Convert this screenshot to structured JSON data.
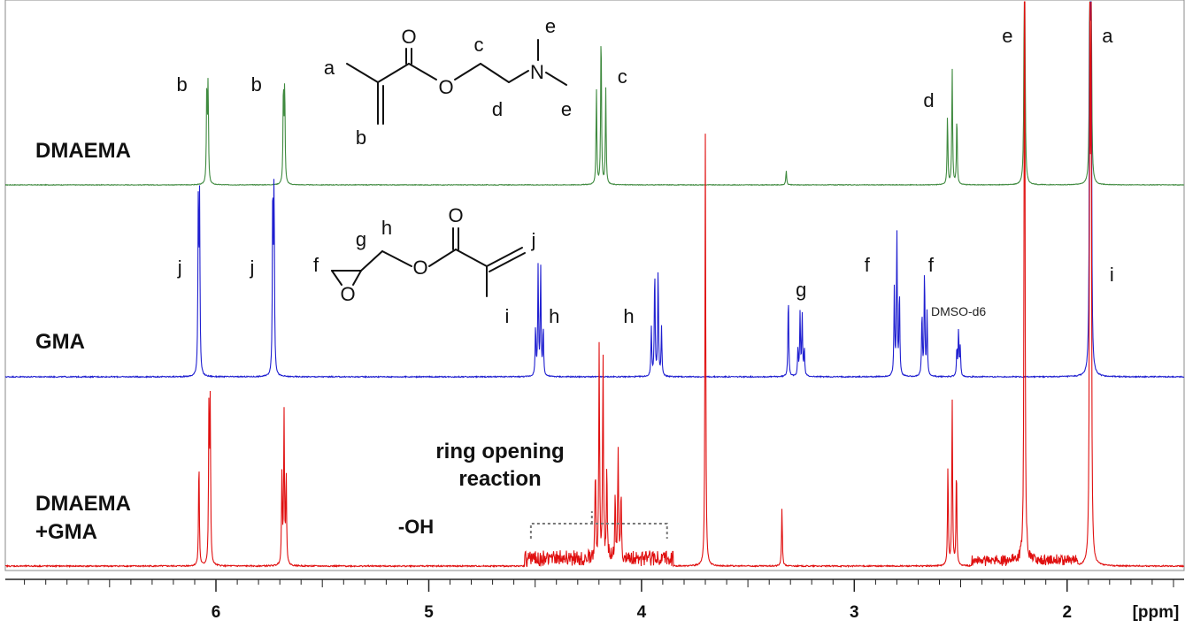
{
  "chart_data": {
    "type": "line",
    "title": "",
    "xlabel": "[ppm]",
    "ylabel": "",
    "x_reversed": true,
    "xlim": [
      6.99,
      1.45
    ],
    "major_ticks": [
      6,
      5,
      4,
      3,
      2
    ],
    "minor_tick_step": 0.1,
    "grid": false,
    "series": [
      {
        "name": "DMAEMA",
        "color": "#3f8a3f",
        "peaks": [
          {
            "ppm": 6.04,
            "height": 0.93,
            "mult": 2,
            "sep": 0.006
          },
          {
            "ppm": 5.68,
            "height": 0.92,
            "mult": 2,
            "sep": 0.006
          },
          {
            "ppm": 4.19,
            "height": 1.5,
            "mult": 3,
            "sep": 0.022
          },
          {
            "ppm": 3.32,
            "height": 0.14,
            "mult": 1,
            "sep": 0
          },
          {
            "ppm": 2.54,
            "height": 1.1,
            "mult": 3,
            "sep": 0.022
          },
          {
            "ppm": 2.2,
            "height": 3.6,
            "mult": 1,
            "sep": 0
          },
          {
            "ppm": 1.89,
            "height": 2.5,
            "mult": 2,
            "sep": 0.006
          }
        ],
        "labels": [
          {
            "text": "b",
            "ppm": 6.16
          },
          {
            "text": "b",
            "ppm": 5.81
          },
          {
            "text": "c",
            "ppm": 4.09
          },
          {
            "text": "d",
            "ppm": 2.65
          },
          {
            "text": "e",
            "ppm": 2.28
          },
          {
            "text": "a",
            "ppm": 1.81
          }
        ]
      },
      {
        "name": "GMA",
        "color": "#1f1fd0",
        "peaks": [
          {
            "ppm": 6.08,
            "height": 0.91,
            "mult": 2,
            "sep": 0.006
          },
          {
            "ppm": 5.73,
            "height": 1.0,
            "mult": 2,
            "sep": 0.006
          },
          {
            "ppm": 4.48,
            "height": 0.58,
            "mult": 4,
            "sep": 0.012
          },
          {
            "ppm": 3.93,
            "height": 0.58,
            "mult": 4,
            "sep": 0.016
          },
          {
            "ppm": 3.31,
            "height": 0.44,
            "mult": 1,
            "sep": 0
          },
          {
            "ppm": 3.25,
            "height": 0.33,
            "mult": 4,
            "sep": 0.01
          },
          {
            "ppm": 2.8,
            "height": 0.77,
            "mult": 3,
            "sep": 0.012
          },
          {
            "ppm": 2.67,
            "height": 0.57,
            "mult": 3,
            "sep": 0.012
          },
          {
            "ppm": 2.51,
            "height": 0.25,
            "mult": 3,
            "sep": 0.008
          },
          {
            "ppm": 1.89,
            "height": 2.5,
            "mult": 2,
            "sep": 0.006
          }
        ],
        "labels": [
          {
            "text": "j",
            "ppm": 6.17
          },
          {
            "text": "j",
            "ppm": 5.83
          },
          {
            "text": "h",
            "ppm": 4.41
          },
          {
            "text": "h",
            "ppm": 4.06
          },
          {
            "text": "g",
            "ppm": 3.25
          },
          {
            "text": "f",
            "ppm": 2.94
          },
          {
            "text": "f",
            "ppm": 2.64
          },
          {
            "text": "i",
            "ppm": 1.79
          }
        ]
      },
      {
        "name": "DMAEMA\n+GMA",
        "color": "#e01010",
        "peaks": [
          {
            "ppm": 6.08,
            "height": 0.5,
            "mult": 1,
            "sep": 0
          },
          {
            "ppm": 6.03,
            "height": 0.72,
            "mult": 2,
            "sep": 0.006
          },
          {
            "ppm": 5.68,
            "height": 0.7,
            "mult": 3,
            "sep": 0.01
          },
          {
            "ppm": 4.19,
            "height": 0.95,
            "mult": 4,
            "sep": 0.018
          },
          {
            "ppm": 4.11,
            "height": 0.48,
            "mult": 3,
            "sep": 0.014
          },
          {
            "ppm": 3.7,
            "height": 2.0,
            "mult": 1,
            "sep": 0
          },
          {
            "ppm": 3.34,
            "height": 0.27,
            "mult": 1,
            "sep": 0
          },
          {
            "ppm": 2.54,
            "height": 0.77,
            "mult": 3,
            "sep": 0.02
          },
          {
            "ppm": 2.2,
            "height": 3.6,
            "mult": 1,
            "sep": 0
          },
          {
            "ppm": 1.89,
            "height": 2.5,
            "mult": 2,
            "sep": 0.006
          }
        ],
        "labels": []
      }
    ],
    "annotations": {
      "solvent_label": "DMSO-d6",
      "solvent_ppm": 2.51,
      "ring_opening_line1": "ring opening",
      "ring_opening_line2": "reaction",
      "ring_opening_range": [
        4.52,
        3.88
      ],
      "oh_label": "-OH"
    }
  },
  "structures": {
    "dmaema": {
      "a": "a",
      "b": "b",
      "c": "c",
      "d": "d",
      "e1": "e",
      "e2": "e",
      "o1": "O",
      "o2": "O",
      "n": "N"
    },
    "gma": {
      "f": "f",
      "g": "g",
      "h": "h",
      "i": "i",
      "j": "j",
      "o1": "O",
      "o2": "O",
      "o3": "O"
    }
  },
  "panel_labels": {
    "dmaema": "DMAEMA",
    "gma": "GMA",
    "mix_line1": "DMAEMA",
    "mix_line2": "+GMA"
  }
}
